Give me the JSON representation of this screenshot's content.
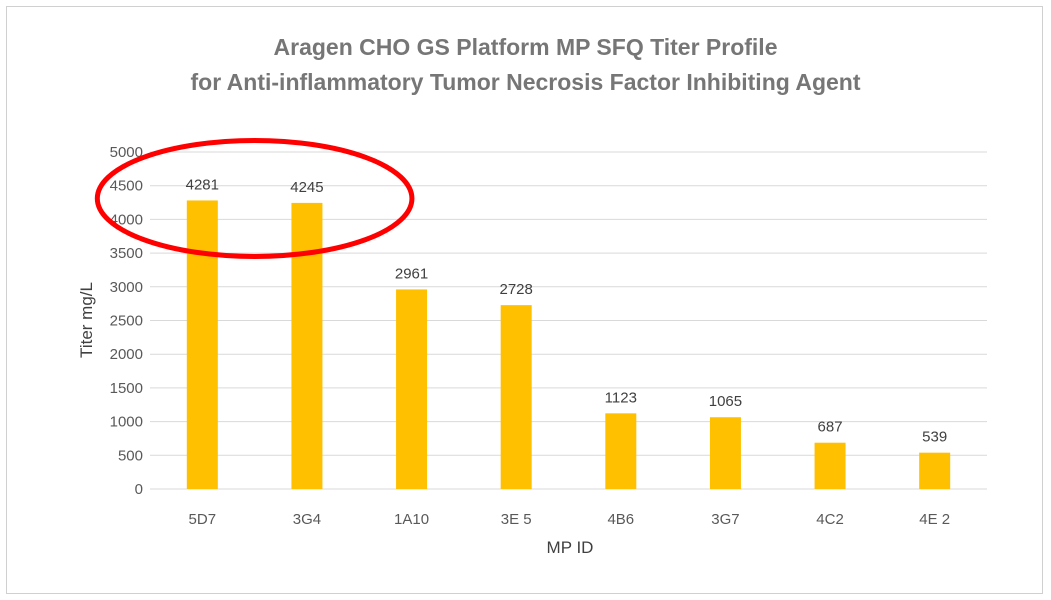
{
  "chart_data": {
    "type": "bar",
    "title_line1": "Aragen CHO GS Platform MP SFQ Titer Profile",
    "title_line2": "for Anti-inflammatory Tumor Necrosis Factor Inhibiting Agent",
    "xlabel": "MP ID",
    "ylabel": "Titer mg/L",
    "categories": [
      "5D7",
      "3G4",
      "1A10",
      "3E 5",
      "4B6",
      "3G7",
      "4C2",
      "4E 2"
    ],
    "values": [
      4281,
      4245,
      2961,
      2728,
      1123,
      1065,
      687,
      539
    ],
    "data_labels": [
      "4281",
      "4245",
      "2961",
      "2728",
      "1123",
      "1065",
      "687",
      "539"
    ],
    "y_ticks": [
      "0",
      "500",
      "1000",
      "1500",
      "2000",
      "2500",
      "3000",
      "3500",
      "4000",
      "4500",
      "5000"
    ],
    "ylim": [
      0,
      5000
    ],
    "grid": true,
    "legend": "none",
    "bar_color": "#FFC000",
    "grid_color": "#d9d9d9",
    "highlight_color": "#ff0000",
    "highlighted_categories": [
      "5D7",
      "3G4"
    ]
  }
}
